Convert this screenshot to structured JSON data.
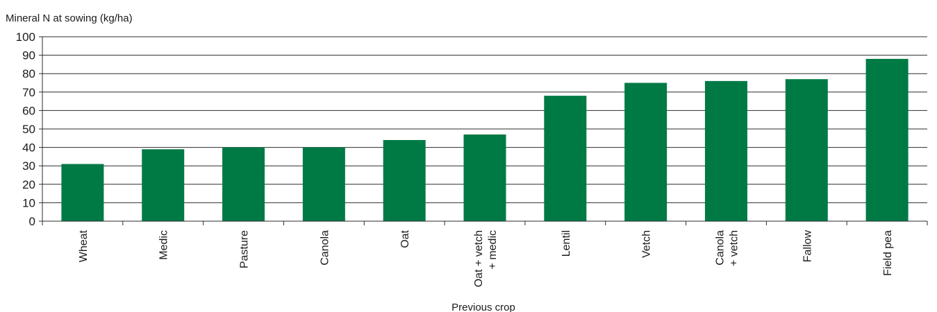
{
  "chart_data": {
    "type": "bar",
    "title": "",
    "ylabel": "Mineral N at sowing (kg/ha)",
    "xlabel": "Previous crop",
    "ylim": [
      0,
      100
    ],
    "yticks": [
      0,
      10,
      20,
      30,
      40,
      50,
      60,
      70,
      80,
      90,
      100
    ],
    "grid": true,
    "categories": [
      [
        "Wheat"
      ],
      [
        "Medic"
      ],
      [
        "Pasture"
      ],
      [
        "Canola"
      ],
      [
        "Oat"
      ],
      [
        "Oat + vetch",
        "+ medic"
      ],
      [
        "Lentil"
      ],
      [
        "Vetch"
      ],
      [
        "Canola",
        "+ vetch"
      ],
      [
        "Fallow"
      ],
      [
        "Field pea"
      ]
    ],
    "values": [
      31,
      39,
      40,
      40,
      44,
      47,
      68,
      75,
      76,
      77,
      88
    ],
    "bar_color": "#007a45"
  }
}
